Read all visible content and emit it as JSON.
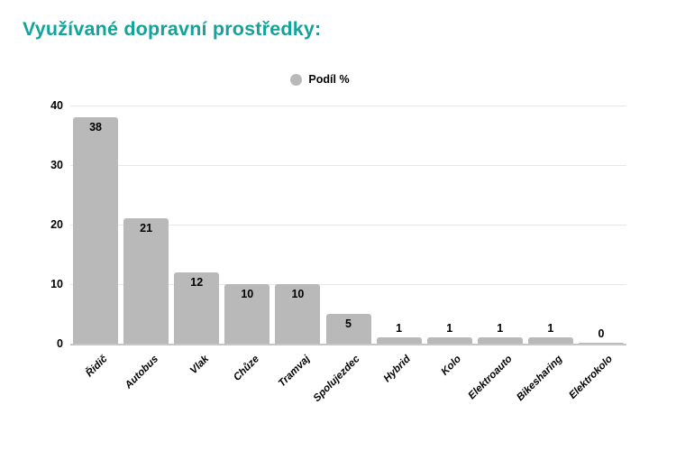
{
  "page": {
    "title": "Využívané dopravní prostředky:",
    "title_color": "#12a39a",
    "background": "#ffffff"
  },
  "legend": {
    "label": "Podíl %",
    "marker_color": "#b9b9b9"
  },
  "chart_data": {
    "type": "bar",
    "title": "Využívané dopravní prostředky:",
    "series_name": "Podíl %",
    "categories": [
      "Řidič",
      "Autobus",
      "Vlak",
      "Chůze",
      "Tramvaj",
      "Spolujezdec",
      "Hybrid",
      "Kolo",
      "Elektroauto",
      "Bikesharing",
      "Elektrokolo"
    ],
    "values": [
      38,
      21,
      12,
      10,
      10,
      5,
      1,
      1,
      1,
      1,
      0
    ],
    "xlabel": "",
    "ylabel": "",
    "ylim": [
      0,
      40
    ],
    "yticks": [
      0,
      10,
      20,
      30,
      40
    ],
    "grid": true,
    "legend_position": "top-center",
    "bar_color": "#b9b9b9",
    "value_label_color": "#000000",
    "tick_label_color": "#000000",
    "gridline_color": "#e8e8e8",
    "axisline_color": "#c6c6c6"
  }
}
